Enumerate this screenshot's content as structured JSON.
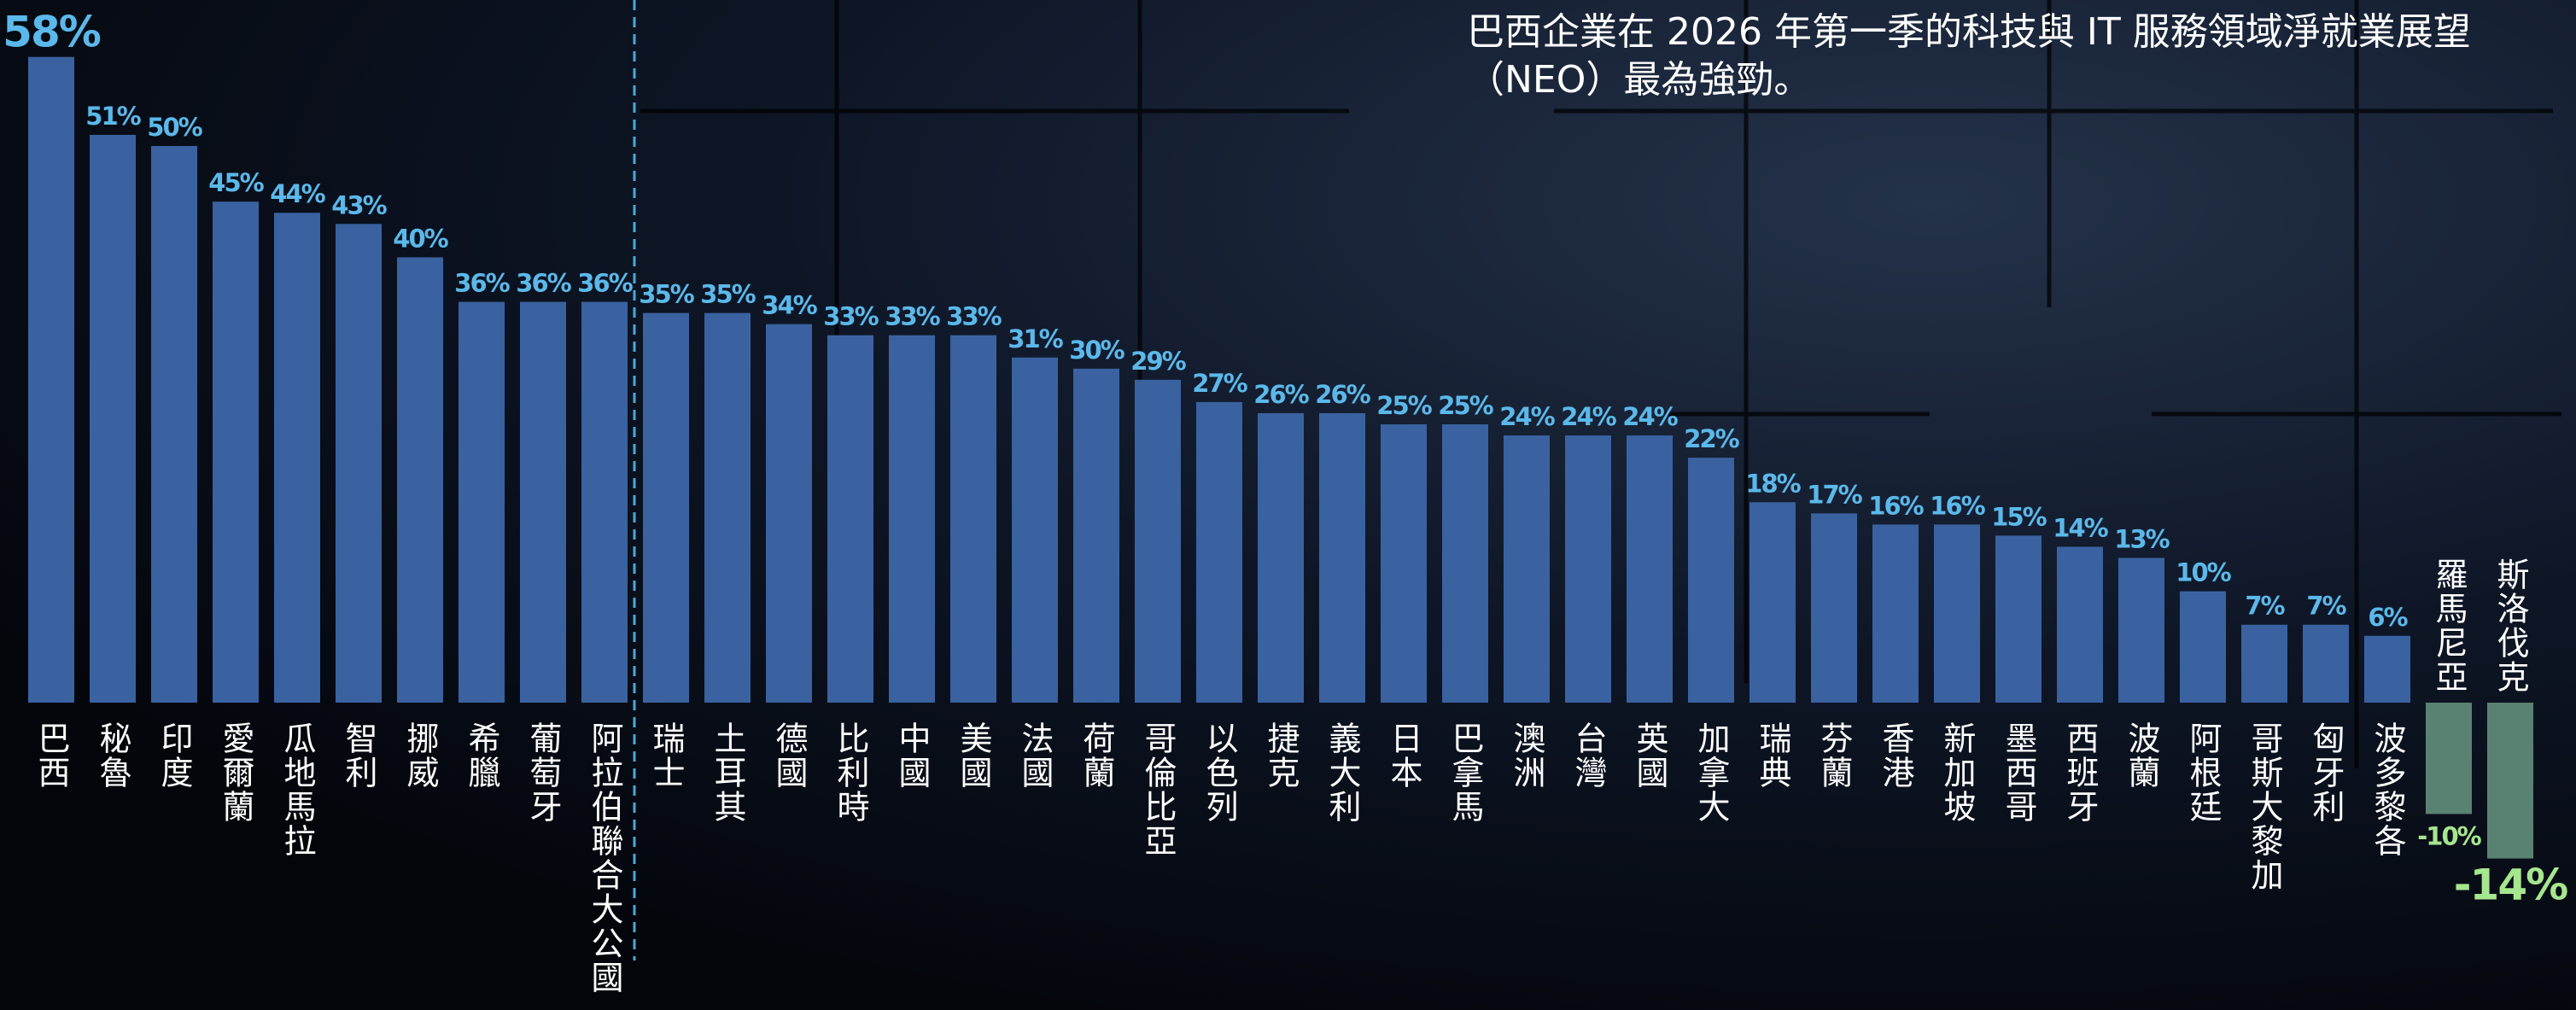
{
  "chart_data": {
    "type": "bar",
    "title": [
      "巴西企業在 2026 年第一季的科技與 IT 服務領域淨就業展望",
      "（NEO）最為強勁。"
    ],
    "categories": [
      "巴西",
      "秘魯",
      "印度",
      "愛爾蘭",
      "瓜地馬拉",
      "智利",
      "挪威",
      "希臘",
      "葡萄牙",
      "阿拉伯聯合大公國",
      "瑞士",
      "土耳其",
      "德國",
      "比利時",
      "中國",
      "美國",
      "法國",
      "荷蘭",
      "哥倫比亞",
      "以色列",
      "捷克",
      "義大利",
      "日本",
      "巴拿馬",
      "澳洲",
      "台灣",
      "英國",
      "加拿大",
      "瑞典",
      "芬蘭",
      "香港",
      "新加坡",
      "墨西哥",
      "西班牙",
      "波蘭",
      "阿根廷",
      "哥斯大黎加",
      "匈牙利",
      "波多黎各",
      "羅馬尼亞",
      "斯洛伐克"
    ],
    "values": [
      58,
      51,
      50,
      45,
      44,
      43,
      40,
      36,
      36,
      36,
      35,
      35,
      34,
      33,
      33,
      33,
      31,
      30,
      29,
      27,
      26,
      26,
      25,
      25,
      24,
      24,
      24,
      22,
      18,
      17,
      16,
      16,
      15,
      14,
      13,
      10,
      7,
      7,
      6,
      -10,
      -14
    ],
    "value_labels": [
      "58%",
      "51%",
      "50%",
      "45%",
      "44%",
      "43%",
      "40%",
      "36%",
      "36%",
      "36%",
      "35%",
      "35%",
      "34%",
      "33%",
      "33%",
      "33%",
      "31%",
      "30%",
      "29%",
      "27%",
      "26%",
      "26%",
      "25%",
      "25%",
      "24%",
      "24%",
      "24%",
      "22%",
      "18%",
      "17%",
      "16%",
      "16%",
      "15%",
      "14%",
      "13%",
      "10%",
      "7%",
      "7%",
      "6%",
      "-10%",
      "-14%"
    ],
    "color": "#3a62a0",
    "negative_color": "#5a8272"
  }
}
